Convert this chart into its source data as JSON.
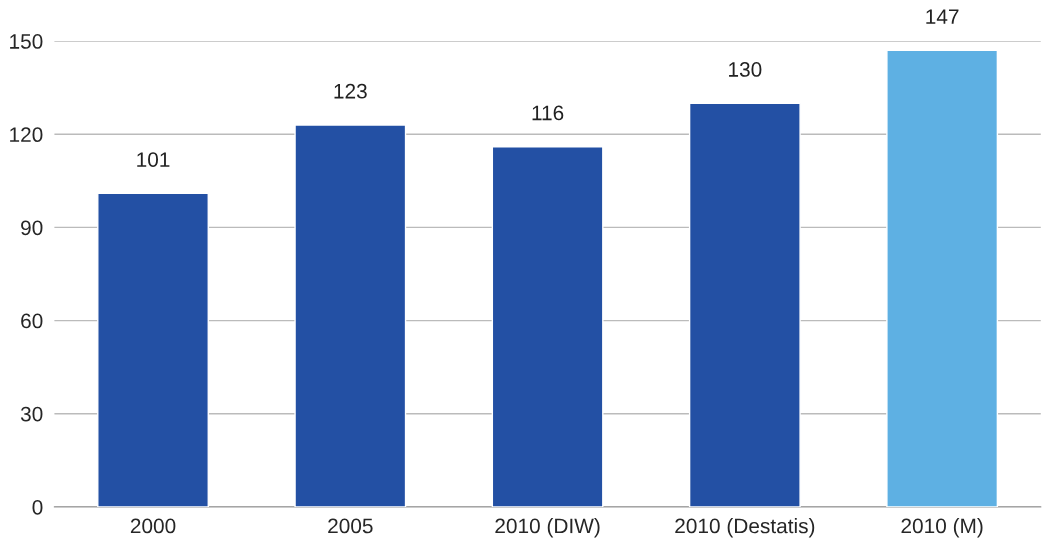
{
  "chart_data": {
    "type": "bar",
    "categories": [
      "2000",
      "2005",
      "2010 (DIW)",
      "2010 (Destatis)",
      "2010 (M)"
    ],
    "values": [
      101,
      123,
      116,
      130,
      147
    ],
    "colors": [
      "#2350a4",
      "#2350a4",
      "#2350a4",
      "#2350a4",
      "#5eb0e3"
    ],
    "ylim": [
      0,
      150
    ],
    "yticks": [
      0,
      30,
      60,
      90,
      120,
      150
    ],
    "grid": "y",
    "data_labels": true
  }
}
